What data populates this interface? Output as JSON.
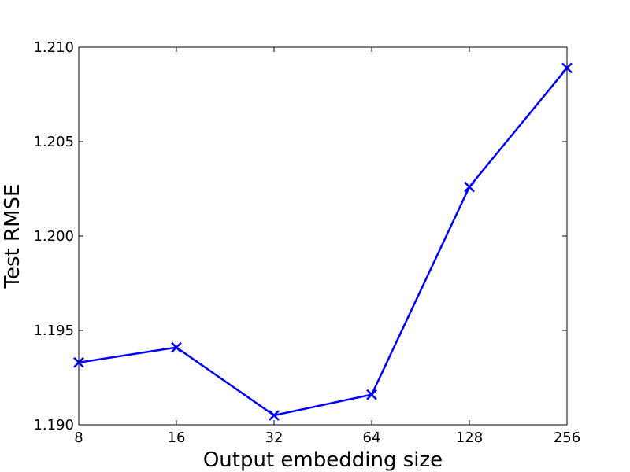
{
  "chart_data": {
    "type": "line",
    "title": "",
    "xlabel": "Output embedding size",
    "ylabel": "Test RMSE",
    "x_scale": "log2",
    "categories": [
      "8",
      "16",
      "32",
      "64",
      "128",
      "256"
    ],
    "x": [
      8,
      16,
      32,
      64,
      128,
      256
    ],
    "xlim": [
      8,
      256
    ],
    "ylim": [
      1.19,
      1.21
    ],
    "y_ticks": [
      "1.190",
      "1.195",
      "1.200",
      "1.205",
      "1.210"
    ],
    "y_tick_values": [
      1.19,
      1.195,
      1.2,
      1.205,
      1.21
    ],
    "grid": false,
    "legend": "none",
    "series": [
      {
        "values": [
          1.1933,
          1.1941,
          1.1905,
          1.1916,
          1.2026,
          1.2089
        ],
        "color": "#0000ff",
        "marker": "x"
      }
    ]
  }
}
